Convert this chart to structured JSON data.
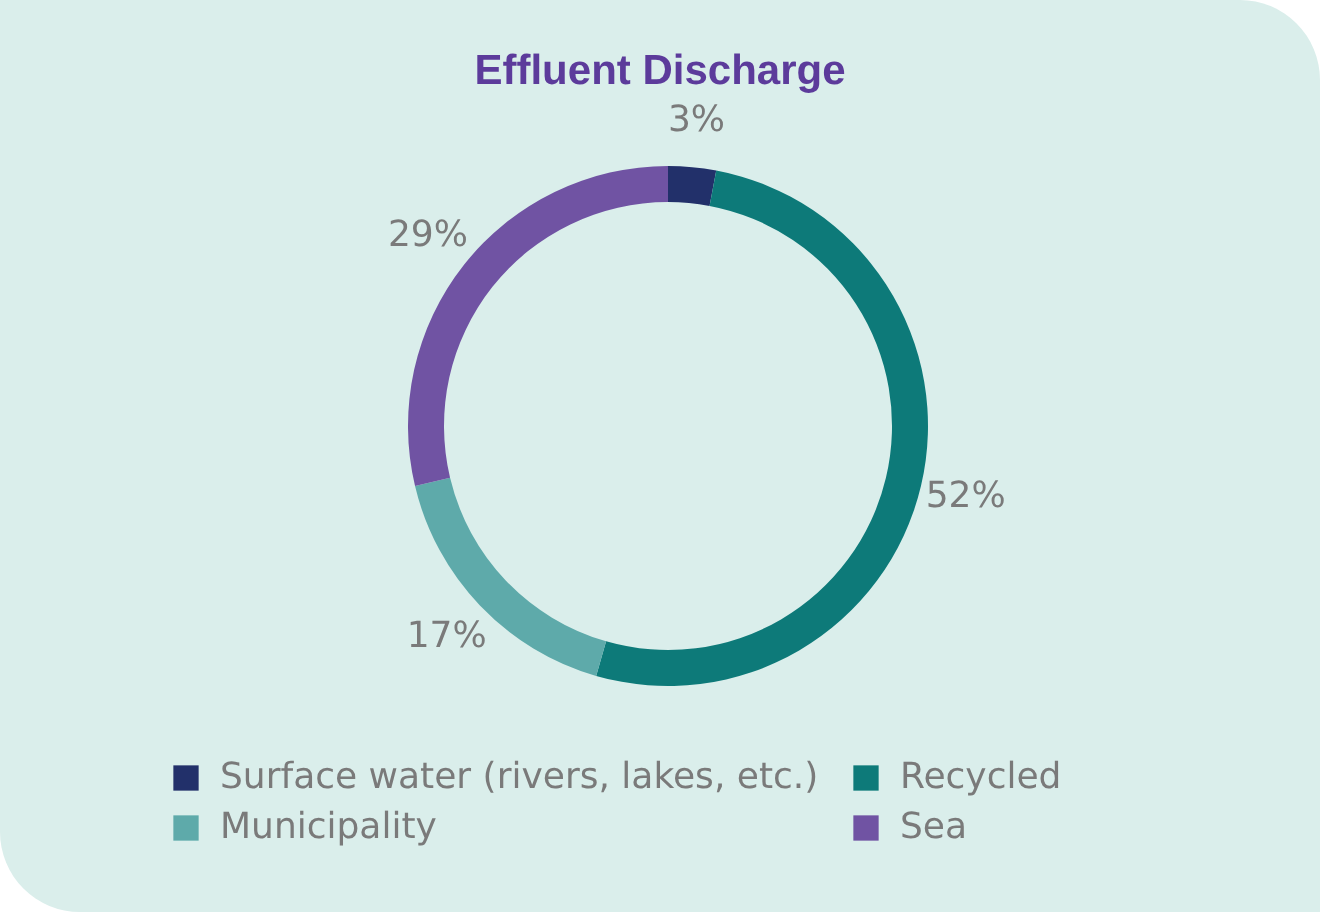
{
  "chart_data": {
    "type": "donut",
    "title": "Effluent Discharge",
    "categories": [
      "Surface water (rivers, lakes, etc.)",
      "Recycled",
      "Municipality",
      "Sea"
    ],
    "values": [
      3,
      52,
      17,
      29
    ],
    "colors": [
      "#22306a",
      "#0d7a79",
      "#5eaaaa",
      "#7053a3"
    ],
    "value_labels": [
      "3%",
      "52%",
      "17%",
      "29%"
    ],
    "legend": "bottom"
  }
}
